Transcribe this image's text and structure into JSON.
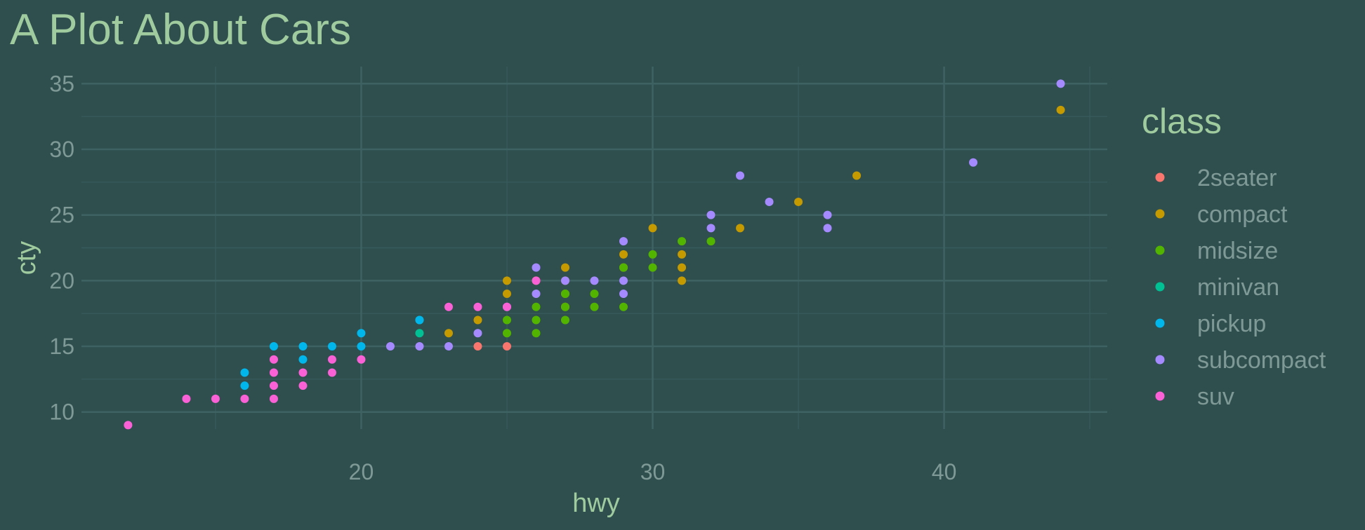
{
  "chart_data": {
    "type": "scatter",
    "title": "A Plot About Cars",
    "xlabel": "hwy",
    "ylabel": "cty",
    "xlim": [
      10.4,
      45.6
    ],
    "ylim": [
      8.7,
      36.3
    ],
    "x_ticks": [
      20,
      30,
      40
    ],
    "y_ticks": [
      10,
      15,
      20,
      25,
      30,
      35
    ],
    "grid": true,
    "legend": {
      "title": "class",
      "position": "right",
      "entries": [
        {
          "name": "2seater",
          "color": "#F8766D"
        },
        {
          "name": "compact",
          "color": "#C49A00"
        },
        {
          "name": "midsize",
          "color": "#53B400"
        },
        {
          "name": "minivan",
          "color": "#00C094"
        },
        {
          "name": "pickup",
          "color": "#00B6EB"
        },
        {
          "name": "subcompact",
          "color": "#A58AFF"
        },
        {
          "name": "suv",
          "color": "#FB61D7"
        }
      ]
    },
    "series": [
      {
        "name": "2seater",
        "color": "#F8766D",
        "points": [
          [
            24,
            15
          ],
          [
            25,
            15
          ]
        ]
      },
      {
        "name": "compact",
        "color": "#C49A00",
        "points": [
          [
            23,
            16
          ],
          [
            24,
            17
          ],
          [
            25,
            19
          ],
          [
            25,
            20
          ],
          [
            26,
            20
          ],
          [
            27,
            21
          ],
          [
            27,
            20
          ],
          [
            27,
            19
          ],
          [
            27,
            18
          ],
          [
            29,
            22
          ],
          [
            29,
            21
          ],
          [
            30,
            24
          ],
          [
            31,
            22
          ],
          [
            31,
            21
          ],
          [
            31,
            20
          ],
          [
            33,
            24
          ],
          [
            35,
            26
          ],
          [
            37,
            28
          ],
          [
            44,
            33
          ]
        ]
      },
      {
        "name": "midsize",
        "color": "#53B400",
        "points": [
          [
            25,
            16
          ],
          [
            25,
            17
          ],
          [
            26,
            16
          ],
          [
            26,
            17
          ],
          [
            26,
            18
          ],
          [
            26,
            19
          ],
          [
            27,
            17
          ],
          [
            27,
            18
          ],
          [
            27,
            19
          ],
          [
            28,
            18
          ],
          [
            28,
            19
          ],
          [
            29,
            18
          ],
          [
            29,
            21
          ],
          [
            30,
            21
          ],
          [
            30,
            22
          ],
          [
            31,
            23
          ],
          [
            32,
            23
          ]
        ]
      },
      {
        "name": "minivan",
        "color": "#00C094",
        "points": [
          [
            22,
            16
          ],
          [
            22,
            17
          ]
        ]
      },
      {
        "name": "pickup",
        "color": "#00B6EB",
        "points": [
          [
            16,
            12
          ],
          [
            16,
            13
          ],
          [
            17,
            15
          ],
          [
            18,
            14
          ],
          [
            18,
            15
          ],
          [
            19,
            15
          ],
          [
            20,
            15
          ],
          [
            20,
            16
          ],
          [
            22,
            17
          ]
        ]
      },
      {
        "name": "subcompact",
        "color": "#A58AFF",
        "points": [
          [
            21,
            15
          ],
          [
            22,
            15
          ],
          [
            23,
            15
          ],
          [
            24,
            16
          ],
          [
            25,
            18
          ],
          [
            26,
            19
          ],
          [
            26,
            21
          ],
          [
            27,
            20
          ],
          [
            28,
            20
          ],
          [
            29,
            19
          ],
          [
            29,
            20
          ],
          [
            29,
            23
          ],
          [
            32,
            24
          ],
          [
            32,
            25
          ],
          [
            33,
            28
          ],
          [
            34,
            26
          ],
          [
            36,
            24
          ],
          [
            36,
            25
          ],
          [
            41,
            29
          ],
          [
            44,
            35
          ]
        ]
      },
      {
        "name": "suv",
        "color": "#FB61D7",
        "points": [
          [
            12,
            9
          ],
          [
            14,
            11
          ],
          [
            15,
            11
          ],
          [
            16,
            11
          ],
          [
            17,
            11
          ],
          [
            17,
            12
          ],
          [
            17,
            13
          ],
          [
            17,
            14
          ],
          [
            18,
            12
          ],
          [
            18,
            13
          ],
          [
            19,
            13
          ],
          [
            19,
            14
          ],
          [
            20,
            14
          ],
          [
            23,
            18
          ],
          [
            24,
            18
          ],
          [
            25,
            18
          ],
          [
            26,
            20
          ]
        ]
      }
    ]
  }
}
